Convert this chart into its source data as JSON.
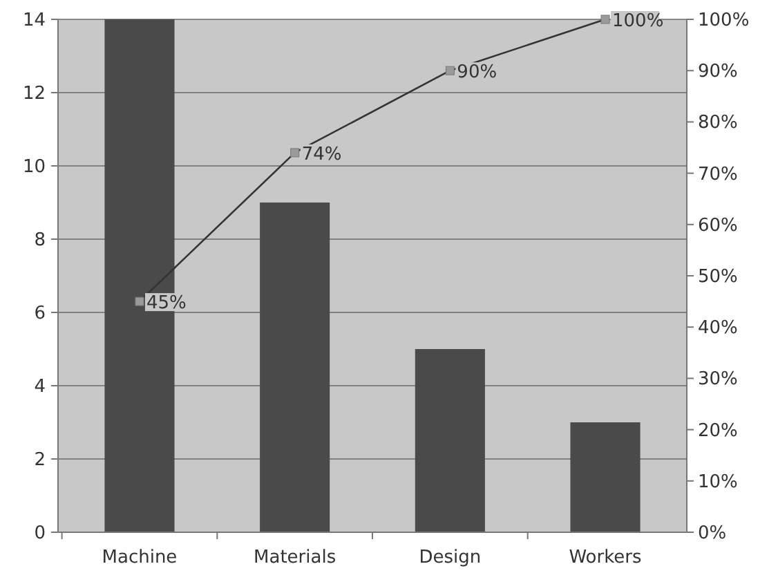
{
  "chart_data": {
    "type": "bar",
    "categories": [
      "Machine",
      "Materials",
      "Design",
      "Workers"
    ],
    "series": [
      {
        "color": "#4a4a4a",
        "values": [
          14,
          9,
          5,
          3
        ]
      },
      {
        "type": "line",
        "axis": "y2",
        "color": "#333333",
        "marker": "square",
        "values": [
          45,
          74,
          90,
          100
        ],
        "value_labels": [
          "45%",
          "74%",
          "90%",
          "100%"
        ]
      }
    ],
    "ylim": [
      0,
      14
    ],
    "yticks": [
      0,
      2,
      4,
      6,
      8,
      10,
      12,
      14
    ],
    "y2lim": [
      0,
      100
    ],
    "y2ticks": [
      {
        "value": 0,
        "label": "0%"
      },
      {
        "value": 10,
        "label": "10%"
      },
      {
        "value": 20,
        "label": "20%"
      },
      {
        "value": 30,
        "label": "30%"
      },
      {
        "value": 40,
        "label": "40%"
      },
      {
        "value": 50,
        "label": "50%"
      },
      {
        "value": 60,
        "label": "60%"
      },
      {
        "value": 70,
        "label": "70%"
      },
      {
        "value": 80,
        "label": "80%"
      },
      {
        "value": 90,
        "label": "90%"
      },
      {
        "value": 100,
        "label": "100%"
      }
    ],
    "grid": "y"
  }
}
